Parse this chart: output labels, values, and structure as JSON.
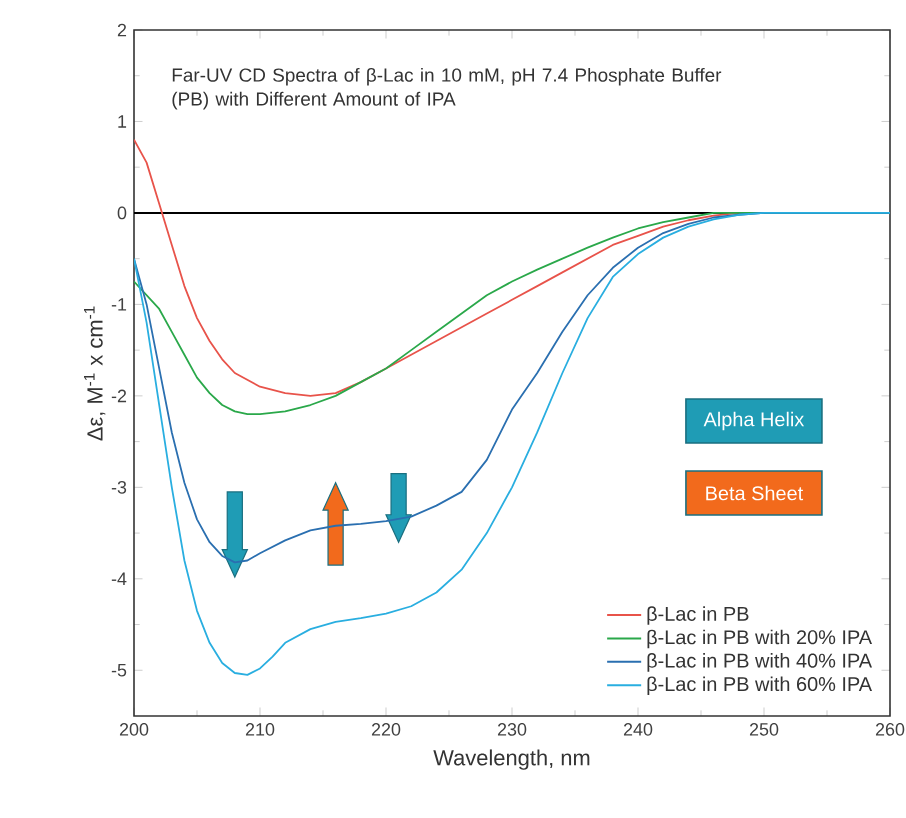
{
  "chart_data": {
    "type": "line",
    "title": "Far-UV CD Spectra of β-Lac in 10 mM, pH 7.4 Phosphate Buffer (PB) with Different Amount of IPA",
    "xlabel": "Wavelength, nm",
    "ylabel": "Δε, M$^{-1}$ x cm$^{-1}$",
    "xlim": [
      200,
      260
    ],
    "ylim": [
      -5.5,
      2
    ],
    "xticks": [
      200,
      210,
      220,
      230,
      240,
      250,
      260
    ],
    "yticks": [
      -5,
      -4,
      -3,
      -2,
      -1,
      0,
      1,
      2
    ],
    "grid": false,
    "legend": "bottom right",
    "marker": "none",
    "line_style": "solid",
    "ref_lines": [
      {
        "axis": "y",
        "value": 0,
        "color": "#000000"
      }
    ],
    "annotations": [
      "Alpha Helix",
      "Beta Sheet"
    ],
    "series": [
      {
        "name": "β-Lac in PB",
        "color": "#e8534a",
        "x": [
          200,
          201,
          202,
          203,
          204,
          205,
          206,
          207,
          208,
          210,
          212,
          214,
          216,
          218,
          220,
          222,
          224,
          226,
          228,
          230,
          232,
          234,
          236,
          238,
          240,
          242,
          244,
          246,
          248,
          250
        ],
        "values": [
          0.8,
          0.55,
          0.1,
          -0.35,
          -0.8,
          -1.15,
          -1.4,
          -1.6,
          -1.75,
          -1.9,
          -1.97,
          -2.0,
          -1.97,
          -1.85,
          -1.7,
          -1.55,
          -1.4,
          -1.25,
          -1.1,
          -0.95,
          -0.8,
          -0.65,
          -0.5,
          -0.35,
          -0.25,
          -0.15,
          -0.08,
          -0.03,
          0,
          0
        ]
      },
      {
        "name": "β-Lac in PB with 20% IPA",
        "color": "#2aa84a",
        "x": [
          200,
          201,
          202,
          203,
          204,
          205,
          206,
          207,
          208,
          209,
          210,
          212,
          214,
          216,
          218,
          220,
          222,
          224,
          226,
          228,
          230,
          232,
          234,
          236,
          238,
          240,
          242,
          244,
          246,
          250,
          255,
          260
        ],
        "values": [
          -0.75,
          -0.9,
          -1.05,
          -1.3,
          -1.55,
          -1.8,
          -1.97,
          -2.1,
          -2.17,
          -2.2,
          -2.2,
          -2.17,
          -2.1,
          -2.0,
          -1.85,
          -1.7,
          -1.5,
          -1.3,
          -1.1,
          -0.9,
          -0.75,
          -0.62,
          -0.5,
          -0.38,
          -0.27,
          -0.17,
          -0.1,
          -0.05,
          0,
          0,
          0,
          0
        ]
      },
      {
        "name": "β-Lac in PB with 40% IPA",
        "color": "#2a6fb0",
        "x": [
          200,
          201,
          202,
          203,
          204,
          205,
          206,
          207,
          208,
          209,
          210,
          212,
          214,
          216,
          218,
          220,
          222,
          224,
          226,
          228,
          230,
          232,
          234,
          236,
          238,
          240,
          242,
          244,
          246,
          248,
          250,
          255,
          260
        ],
        "values": [
          -0.5,
          -1.0,
          -1.7,
          -2.4,
          -2.95,
          -3.35,
          -3.6,
          -3.75,
          -3.82,
          -3.8,
          -3.72,
          -3.58,
          -3.47,
          -3.42,
          -3.4,
          -3.37,
          -3.32,
          -3.2,
          -3.05,
          -2.7,
          -2.15,
          -1.75,
          -1.3,
          -0.9,
          -0.6,
          -0.38,
          -0.22,
          -0.12,
          -0.05,
          -0.02,
          0,
          0,
          0
        ]
      },
      {
        "name": "β-Lac in PB with 60% IPA",
        "color": "#29aee0",
        "x": [
          200,
          201,
          202,
          203,
          204,
          205,
          206,
          207,
          208,
          209,
          210,
          211,
          212,
          214,
          216,
          218,
          220,
          222,
          224,
          226,
          228,
          230,
          232,
          234,
          236,
          238,
          240,
          242,
          244,
          246,
          248,
          250,
          255,
          260
        ],
        "values": [
          -0.5,
          -1.2,
          -2.1,
          -3.0,
          -3.8,
          -4.35,
          -4.7,
          -4.92,
          -5.03,
          -5.05,
          -4.98,
          -4.85,
          -4.7,
          -4.55,
          -4.47,
          -4.43,
          -4.38,
          -4.3,
          -4.15,
          -3.9,
          -3.5,
          -3.0,
          -2.4,
          -1.75,
          -1.15,
          -0.7,
          -0.45,
          -0.27,
          -0.15,
          -0.07,
          -0.02,
          0,
          0,
          0
        ]
      }
    ]
  }
}
